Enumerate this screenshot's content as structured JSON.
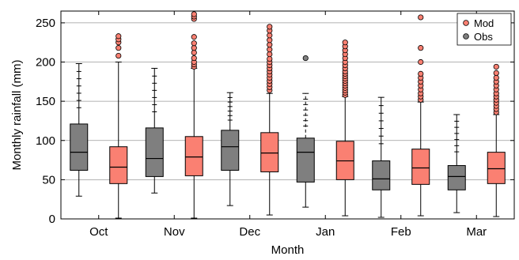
{
  "chart_data": {
    "type": "box",
    "xlabel": "Month",
    "ylabel": "Monthly rainfall (mm)",
    "ylim": [
      0,
      265
    ],
    "yticks": [
      0,
      50,
      100,
      150,
      200,
      250
    ],
    "grid": "horizontal",
    "legend_position": "top-right",
    "categories": [
      "Oct",
      "Nov",
      "Dec",
      "Jan",
      "Feb",
      "Mar"
    ],
    "series": [
      {
        "name": "Obs",
        "color": "#7f7f7f",
        "boxes": [
          {
            "whisker_low": 29,
            "q1": 62,
            "median": 85,
            "q3": 121,
            "whisker_high": 198,
            "outliers": []
          },
          {
            "whisker_low": 33,
            "q1": 54,
            "median": 77,
            "q3": 116,
            "whisker_high": 192,
            "outliers": []
          },
          {
            "whisker_low": 17,
            "q1": 62,
            "median": 92,
            "q3": 113,
            "whisker_high": 161,
            "outliers": []
          },
          {
            "whisker_low": 15,
            "q1": 47,
            "median": 85,
            "q3": 103,
            "whisker_high": 160,
            "outliers": [
              205
            ]
          },
          {
            "whisker_low": 2,
            "q1": 37,
            "median": 51,
            "q3": 74,
            "whisker_high": 155,
            "outliers": []
          },
          {
            "whisker_low": 8,
            "q1": 37,
            "median": 54,
            "q3": 68,
            "whisker_high": 133,
            "outliers": []
          }
        ]
      },
      {
        "name": "Mod",
        "color": "#fa8072",
        "boxes": [
          {
            "whisker_low": 1,
            "q1": 45,
            "median": 66,
            "q3": 92,
            "whisker_high": 200,
            "outliers": [
              208,
              218,
              225,
              229,
              233
            ]
          },
          {
            "whisker_low": 1,
            "q1": 55,
            "median": 79,
            "q3": 105,
            "whisker_high": 192,
            "outliers": [
              194,
              197,
              200,
              205,
              212,
              218,
              224,
              232,
              255,
              258,
              261
            ]
          },
          {
            "whisker_low": 5,
            "q1": 60,
            "median": 84,
            "q3": 110,
            "whisker_high": 160,
            "outliers": [
              164,
              168,
              172,
              176,
              180,
              184,
              188,
              192,
              196,
              200,
              204,
              210,
              216,
              222,
              228,
              234,
              240,
              245
            ]
          },
          {
            "whisker_low": 4,
            "q1": 50,
            "median": 74,
            "q3": 99,
            "whisker_high": 156,
            "outliers": [
              158,
              161,
              164,
              167,
              170,
              173,
              176,
              179,
              182,
              185,
              188,
              192,
              196,
              200,
              205,
              210,
              215,
              220,
              225
            ]
          },
          {
            "whisker_low": 4,
            "q1": 44,
            "median": 65,
            "q3": 89,
            "whisker_high": 149,
            "outliers": [
              152,
              156,
              160,
              165,
              170,
              175,
              180,
              185,
              200,
              218,
              257
            ]
          },
          {
            "whisker_low": 3,
            "q1": 45,
            "median": 64,
            "q3": 85,
            "whisker_high": 133,
            "outliers": [
              136,
              140,
              144,
              148,
              152,
              156,
              160,
              165,
              170,
              175,
              180,
              186,
              194
            ]
          }
        ]
      }
    ]
  }
}
